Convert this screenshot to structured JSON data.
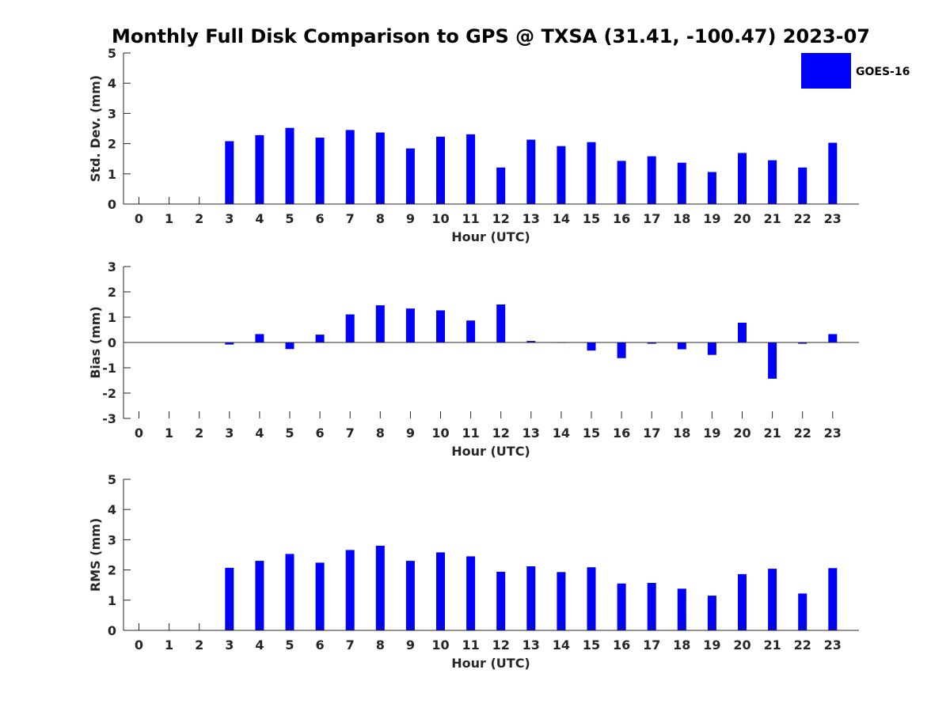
{
  "title": "Monthly Full Disk Comparison to GPS @ TXSA (31.41, -100.47) 2023-07",
  "legend": {
    "label": "GOES-16",
    "color": "#0000ff"
  },
  "chart_data": [
    {
      "type": "bar",
      "title": "Monthly Full Disk Comparison to GPS @ TXSA (31.41, -100.47) 2023-07",
      "xlabel": "Hour (UTC)",
      "ylabel": "Std. Dev. (mm)",
      "ylim": [
        0,
        5
      ],
      "yticks": [
        0,
        1,
        2,
        3,
        4,
        5
      ],
      "categories": [
        "0",
        "1",
        "2",
        "3",
        "4",
        "5",
        "6",
        "7",
        "8",
        "9",
        "10",
        "11",
        "12",
        "13",
        "14",
        "15",
        "16",
        "17",
        "18",
        "19",
        "20",
        "21",
        "22",
        "23"
      ],
      "series": [
        {
          "name": "GOES-16",
          "color": "#0000ff",
          "values": [
            null,
            null,
            null,
            2.08,
            2.28,
            2.52,
            2.2,
            2.45,
            2.37,
            1.84,
            2.23,
            2.31,
            1.21,
            2.13,
            1.92,
            2.05,
            1.43,
            1.58,
            1.37,
            1.06,
            1.69,
            1.45,
            1.21,
            2.03
          ]
        }
      ]
    },
    {
      "type": "bar",
      "xlabel": "Hour (UTC)",
      "ylabel": "Bias (mm)",
      "ylim": [
        -3,
        3
      ],
      "yticks": [
        -3,
        -2,
        -1,
        0,
        1,
        2,
        3
      ],
      "categories": [
        "0",
        "1",
        "2",
        "3",
        "4",
        "5",
        "6",
        "7",
        "8",
        "9",
        "10",
        "11",
        "12",
        "13",
        "14",
        "15",
        "16",
        "17",
        "18",
        "19",
        "20",
        "21",
        "22",
        "23"
      ],
      "series": [
        {
          "name": "GOES-16",
          "color": "#0000ff",
          "values": [
            null,
            null,
            null,
            -0.08,
            0.33,
            -0.26,
            0.31,
            1.11,
            1.47,
            1.34,
            1.27,
            0.87,
            1.5,
            0.06,
            -0.02,
            -0.32,
            -0.62,
            -0.05,
            -0.27,
            -0.49,
            0.78,
            -1.43,
            -0.05,
            0.33
          ]
        }
      ]
    },
    {
      "type": "bar",
      "xlabel": "Hour (UTC)",
      "ylabel": "RMS (mm)",
      "ylim": [
        0,
        5
      ],
      "yticks": [
        0,
        1,
        2,
        3,
        4,
        5
      ],
      "categories": [
        "0",
        "1",
        "2",
        "3",
        "4",
        "5",
        "6",
        "7",
        "8",
        "9",
        "10",
        "11",
        "12",
        "13",
        "14",
        "15",
        "16",
        "17",
        "18",
        "19",
        "20",
        "21",
        "22",
        "23"
      ],
      "series": [
        {
          "name": "GOES-16",
          "color": "#0000ff",
          "values": [
            null,
            null,
            null,
            2.07,
            2.3,
            2.53,
            2.24,
            2.66,
            2.8,
            2.3,
            2.58,
            2.45,
            1.94,
            2.12,
            1.93,
            2.09,
            1.55,
            1.57,
            1.38,
            1.15,
            1.86,
            2.04,
            1.22,
            2.06
          ]
        }
      ]
    }
  ]
}
